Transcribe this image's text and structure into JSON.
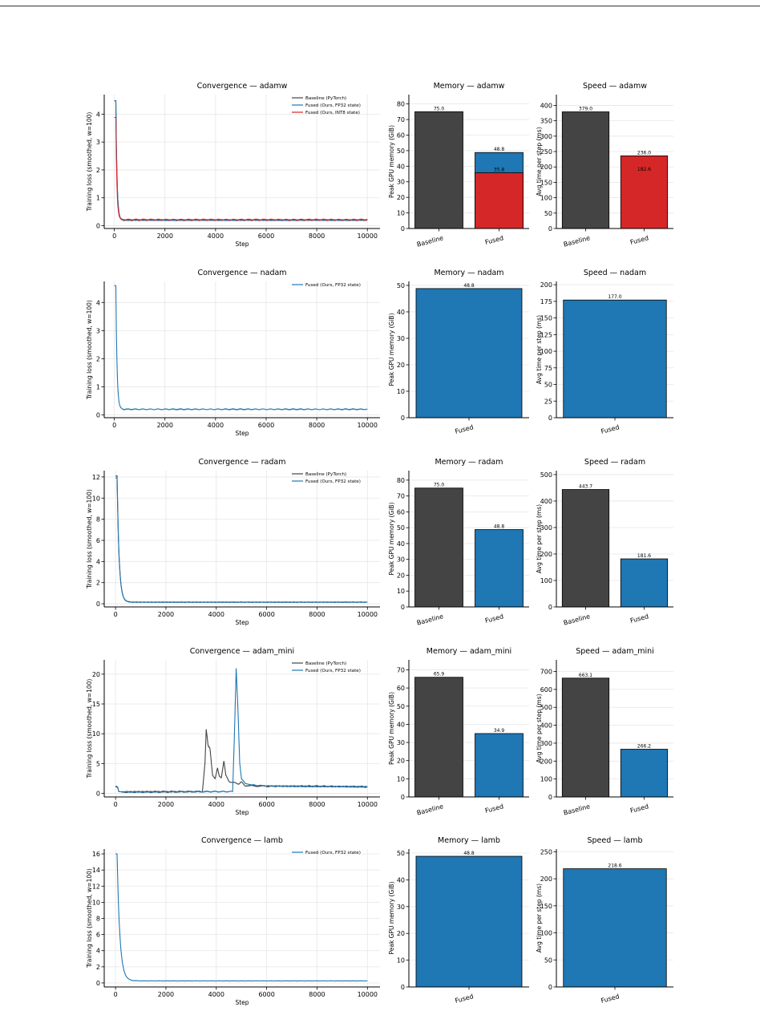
{
  "colors": {
    "baseline": "#444444",
    "fused_fp32": "#1f77b4",
    "fused_int8": "#d62728",
    "grid": "#e6e6e6",
    "axis": "#000000"
  },
  "chart_data": [
    {
      "type": "line",
      "title": "Convergence — adamw",
      "xlabel": "Step",
      "ylabel": "Training loss (smoothed, w=100)",
      "xlim": [
        -400,
        10500
      ],
      "ylim": [
        -0.1,
        4.7
      ],
      "xticks": [
        0,
        2000,
        4000,
        6000,
        8000,
        10000
      ],
      "yticks": [
        0,
        1,
        2,
        3,
        4
      ],
      "grid": true,
      "legend": "top-right",
      "series": [
        {
          "name": "Baseline (PyTorch)",
          "color": "#444444",
          "shape": "decay",
          "start": 4.48,
          "plateau": 0.2,
          "tau": 45,
          "noise": 0.02
        },
        {
          "name": "Fused (Ours, FP32 state)",
          "color": "#1f77b4",
          "shape": "decay",
          "start": 4.48,
          "plateau": 0.2,
          "tau": 45,
          "noise": 0.02
        },
        {
          "name": "Fused (Ours, INT8 state)",
          "color": "#d62728",
          "shape": "decay",
          "start": 3.88,
          "plateau": 0.22,
          "tau": 40,
          "noise": 0.02
        }
      ]
    },
    {
      "type": "bar",
      "title": "Memory — adamw",
      "ylabel": "Peak GPU memory (GiB)",
      "categories": [
        "Baseline",
        "Fused"
      ],
      "ylim": [
        0,
        86
      ],
      "yticks": [
        0,
        10,
        20,
        30,
        40,
        50,
        60,
        70,
        80
      ],
      "bars": [
        {
          "category": "Baseline",
          "value": 75.0,
          "label": "75.0",
          "color": "#444444"
        },
        {
          "category": "Fused",
          "value": 48.8,
          "label": "48.8",
          "color": "#1f77b4"
        },
        {
          "category": "Fused",
          "value": 35.8,
          "label": "35.8",
          "color": "#d62728"
        }
      ]
    },
    {
      "type": "bar",
      "title": "Speed — adamw",
      "ylabel": "Avg time per step (ms)",
      "categories": [
        "Baseline",
        "Fused"
      ],
      "ylim": [
        0,
        435
      ],
      "yticks": [
        0,
        50,
        100,
        150,
        200,
        250,
        300,
        350,
        400
      ],
      "bars": [
        {
          "category": "Baseline",
          "value": 379.0,
          "label": "379.0",
          "color": "#444444"
        },
        {
          "category": "Fused",
          "value": 236.0,
          "label": "236.0",
          "color": "#d62728"
        },
        {
          "category": "Fused",
          "value": 182.6,
          "label": "182.6",
          "color": "#d62728",
          "label_only": true
        }
      ]
    },
    {
      "type": "line",
      "title": "Convergence — nadam",
      "xlabel": "Step",
      "ylabel": "Training loss (smoothed, w=100)",
      "xlim": [
        -400,
        10500
      ],
      "ylim": [
        -0.1,
        4.75
      ],
      "xticks": [
        0,
        2000,
        4000,
        6000,
        8000,
        10000
      ],
      "yticks": [
        0,
        1,
        2,
        3,
        4
      ],
      "grid": true,
      "legend": "top-right",
      "series": [
        {
          "name": "Fused (Ours, FP32 state)",
          "color": "#1f77b4",
          "shape": "decay",
          "start": 4.6,
          "plateau": 0.2,
          "tau": 45,
          "noise": 0.02
        }
      ]
    },
    {
      "type": "bar",
      "title": "Memory — nadam",
      "ylabel": "Peak GPU memory (GiB)",
      "categories": [
        "Fused"
      ],
      "ylim": [
        0,
        51.5
      ],
      "yticks": [
        0,
        10,
        20,
        30,
        40,
        50
      ],
      "bars": [
        {
          "category": "Fused",
          "value": 48.8,
          "label": "48.8",
          "color": "#1f77b4"
        }
      ]
    },
    {
      "type": "bar",
      "title": "Speed — nadam",
      "ylabel": "Avg time per step (ms)",
      "categories": [
        "Fused"
      ],
      "ylim": [
        0,
        205
      ],
      "yticks": [
        0,
        25,
        50,
        75,
        100,
        125,
        150,
        175,
        200
      ],
      "bars": [
        {
          "category": "Fused",
          "value": 177.0,
          "label": "177.0",
          "color": "#1f77b4"
        }
      ]
    },
    {
      "type": "line",
      "title": "Convergence — radam",
      "xlabel": "Step",
      "ylabel": "Training loss (smoothed, w=100)",
      "xlim": [
        -450,
        10500
      ],
      "ylim": [
        -0.3,
        12.6
      ],
      "xticks": [
        0,
        2000,
        4000,
        6000,
        8000,
        10000
      ],
      "yticks": [
        0,
        2,
        4,
        6,
        8,
        10,
        12
      ],
      "grid": true,
      "legend": "top-right",
      "series": [
        {
          "name": "Baseline (PyTorch)",
          "color": "#444444",
          "shape": "decay",
          "start": 12.1,
          "plateau": 0.15,
          "tau": 80,
          "noise": 0.03
        },
        {
          "name": "Fused (Ours, FP32 state)",
          "color": "#1f77b4",
          "shape": "decay",
          "start": 11.9,
          "plateau": 0.15,
          "tau": 80,
          "noise": 0.03
        }
      ]
    },
    {
      "type": "bar",
      "title": "Memory — radam",
      "ylabel": "Peak GPU memory (GiB)",
      "categories": [
        "Baseline",
        "Fused"
      ],
      "ylim": [
        0,
        86
      ],
      "yticks": [
        0,
        10,
        20,
        30,
        40,
        50,
        60,
        70,
        80
      ],
      "bars": [
        {
          "category": "Baseline",
          "value": 75.0,
          "label": "75.0",
          "color": "#444444"
        },
        {
          "category": "Fused",
          "value": 48.8,
          "label": "48.8",
          "color": "#1f77b4"
        }
      ]
    },
    {
      "type": "bar",
      "title": "Speed — radam",
      "ylabel": "Avg time per step (ms)",
      "categories": [
        "Baseline",
        "Fused"
      ],
      "ylim": [
        0,
        515
      ],
      "yticks": [
        0,
        100,
        200,
        300,
        400,
        500
      ],
      "bars": [
        {
          "category": "Baseline",
          "value": 443.7,
          "label": "443.7",
          "color": "#444444"
        },
        {
          "category": "Fused",
          "value": 181.6,
          "label": "181.6",
          "color": "#1f77b4"
        }
      ]
    },
    {
      "type": "line",
      "title": "Convergence — adam_mini",
      "xlabel": "Step",
      "ylabel": "Training loss (smoothed, w=100)",
      "xlim": [
        -450,
        10500
      ],
      "ylim": [
        -0.6,
        22.4
      ],
      "xticks": [
        0,
        2000,
        4000,
        6000,
        8000,
        10000
      ],
      "yticks": [
        0,
        5,
        10,
        15,
        20
      ],
      "grid": true,
      "legend": "top-right",
      "series": [
        {
          "name": "Baseline (PyTorch)",
          "color": "#444444",
          "shape": "points",
          "noise": 0.12,
          "points": [
            [
              0,
              1.2
            ],
            [
              80,
              1.1
            ],
            [
              130,
              0.3
            ],
            [
              300,
              0.22
            ],
            [
              3450,
              0.3
            ],
            [
              3550,
              5.0
            ],
            [
              3600,
              10.7
            ],
            [
              3680,
              8.0
            ],
            [
              3750,
              7.5
            ],
            [
              3850,
              3.0
            ],
            [
              3950,
              2.5
            ],
            [
              4050,
              4.3
            ],
            [
              4120,
              2.8
            ],
            [
              4200,
              2.6
            ],
            [
              4300,
              5.5
            ],
            [
              4380,
              3.0
            ],
            [
              4500,
              2.0
            ],
            [
              4700,
              1.8
            ],
            [
              4900,
              1.6
            ],
            [
              5000,
              1.9
            ],
            [
              5150,
              1.3
            ],
            [
              6000,
              1.2
            ],
            [
              8000,
              1.2
            ],
            [
              10000,
              1.1
            ]
          ]
        },
        {
          "name": "Fused (Ours, FP32 state)",
          "color": "#1f77b4",
          "shape": "points",
          "noise": 0.1,
          "points": [
            [
              0,
              1.1
            ],
            [
              80,
              1.0
            ],
            [
              130,
              0.3
            ],
            [
              300,
              0.25
            ],
            [
              4650,
              0.3
            ],
            [
              4720,
              10.0
            ],
            [
              4790,
              21.0
            ],
            [
              4860,
              14.0
            ],
            [
              4930,
              5.0
            ],
            [
              5000,
              2.5
            ],
            [
              5150,
              1.6
            ],
            [
              5400,
              1.4
            ],
            [
              6000,
              1.25
            ],
            [
              8000,
              1.15
            ],
            [
              10000,
              1.1
            ]
          ]
        }
      ]
    },
    {
      "type": "bar",
      "title": "Memory — adam_mini",
      "ylabel": "Peak GPU memory (GiB)",
      "categories": [
        "Baseline",
        "Fused"
      ],
      "ylim": [
        0,
        75.5
      ],
      "yticks": [
        0,
        10,
        20,
        30,
        40,
        50,
        60,
        70
      ],
      "bars": [
        {
          "category": "Baseline",
          "value": 65.9,
          "label": "65.9",
          "color": "#444444"
        },
        {
          "category": "Fused",
          "value": 34.9,
          "label": "34.9",
          "color": "#1f77b4"
        }
      ]
    },
    {
      "type": "bar",
      "title": "Speed — adam_mini",
      "ylabel": "Avg time per step (ms)",
      "categories": [
        "Baseline",
        "Fused"
      ],
      "ylim": [
        0,
        765
      ],
      "yticks": [
        0,
        100,
        200,
        300,
        400,
        500,
        600,
        700
      ],
      "bars": [
        {
          "category": "Baseline",
          "value": 663.1,
          "label": "663.1",
          "color": "#444444"
        },
        {
          "category": "Fused",
          "value": 266.2,
          "label": "266.2",
          "color": "#1f77b4"
        }
      ]
    },
    {
      "type": "line",
      "title": "Convergence — lamb",
      "xlabel": "Step",
      "ylabel": "Training loss (smoothed, w=100)",
      "xlim": [
        -450,
        10500
      ],
      "ylim": [
        -0.5,
        16.6
      ],
      "xticks": [
        0,
        2000,
        4000,
        6000,
        8000,
        10000
      ],
      "yticks": [
        0,
        2,
        4,
        6,
        8,
        10,
        12,
        14,
        16
      ],
      "grid": true,
      "legend": "top-right",
      "series": [
        {
          "name": "Fused (Ours, FP32 state)",
          "color": "#1f77b4",
          "shape": "decay",
          "start": 16.0,
          "plateau": 0.25,
          "tau": 110,
          "noise": 0.02
        }
      ]
    },
    {
      "type": "bar",
      "title": "Memory — lamb",
      "ylabel": "Peak GPU memory (GiB)",
      "categories": [
        "Fused"
      ],
      "ylim": [
        0,
        51.5
      ],
      "yticks": [
        0,
        10,
        20,
        30,
        40,
        50
      ],
      "bars": [
        {
          "category": "Fused",
          "value": 48.8,
          "label": "48.8",
          "color": "#1f77b4"
        }
      ]
    },
    {
      "type": "bar",
      "title": "Speed — lamb",
      "ylabel": "Avg time per step (ms)",
      "categories": [
        "Fused"
      ],
      "ylim": [
        0,
        255
      ],
      "yticks": [
        0,
        50,
        100,
        150,
        200,
        250
      ],
      "bars": [
        {
          "category": "Fused",
          "value": 218.6,
          "label": "218.6",
          "color": "#1f77b4"
        }
      ]
    }
  ]
}
